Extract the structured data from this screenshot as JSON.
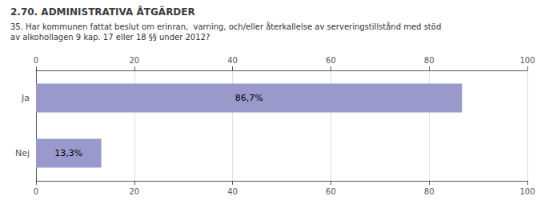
{
  "chart_data": {
    "type": "bar",
    "orientation": "horizontal",
    "title": "2.70. ADMINISTRATIVA ÅTGÄRDER",
    "subtitle": "35. Har kommunen fattat beslut om erinran,  varning, och/eller återkallelse av serveringstillstånd med stöd\nav alkohollagen 9 kap. 17 eller 18 §§ under 2012?",
    "categories": [
      "Ja",
      "Nej"
    ],
    "values": [
      86.7,
      13.3
    ],
    "value_labels": [
      "86,7%",
      "13,3%"
    ],
    "data_labels": true,
    "color": "#9999cc",
    "xlim": [
      0,
      100
    ],
    "xticks": [
      0,
      20,
      40,
      60,
      80,
      100
    ],
    "grid": true
  }
}
